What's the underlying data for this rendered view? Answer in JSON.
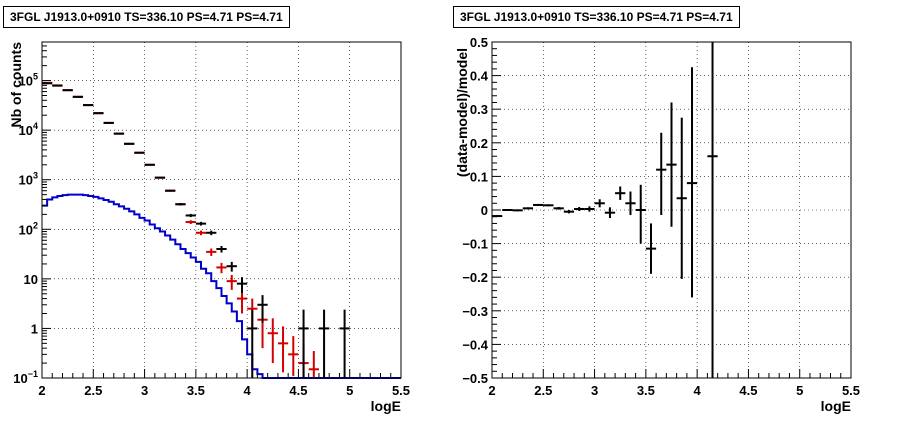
{
  "colors": {
    "data": "#000000",
    "model": "#d40000",
    "background": "#0000cc",
    "frame": "#000000",
    "grid": "#000000"
  },
  "chart_data": [
    {
      "type": "line",
      "title": "3FGL J1913.0+0910 TS=336.10 PS=4.71 PS=4.71",
      "xlabel": "logE",
      "ylabel": "Nb of counts",
      "log_y": true,
      "xlim": [
        2,
        5.5
      ],
      "ylim": [
        0.1,
        600000
      ],
      "grid": true,
      "x_tick_labels": [
        "2",
        "2.5",
        "3",
        "3.5",
        "4",
        "4.5",
        "5",
        "5.5"
      ],
      "y_tick_labels": [
        "10^-1",
        "1",
        "10",
        "10^2",
        "10^3",
        "10^4",
        "10^5"
      ],
      "bin_width": 0.1,
      "series": [
        {
          "role": "data",
          "color": "#000000",
          "points": [
            {
              "x": 2.05,
              "y": 88000,
              "ylo": 87700,
              "yhi": 88300
            },
            {
              "x": 2.15,
              "y": 79000,
              "ylo": 78700,
              "yhi": 79300
            },
            {
              "x": 2.25,
              "y": 64000,
              "ylo": 63700,
              "yhi": 64300
            },
            {
              "x": 2.35,
              "y": 47000,
              "ylo": 46800,
              "yhi": 47200
            },
            {
              "x": 2.45,
              "y": 32000,
              "ylo": 31800,
              "yhi": 32200
            },
            {
              "x": 2.55,
              "y": 22000,
              "ylo": 21850,
              "yhi": 22150
            },
            {
              "x": 2.65,
              "y": 14000,
              "ylo": 13880,
              "yhi": 14120
            },
            {
              "x": 2.75,
              "y": 8500,
              "ylo": 8410,
              "yhi": 8590
            },
            {
              "x": 2.85,
              "y": 5300,
              "ylo": 5230,
              "yhi": 5370
            },
            {
              "x": 2.95,
              "y": 3500,
              "ylo": 3440,
              "yhi": 3560
            },
            {
              "x": 3.05,
              "y": 2000,
              "ylo": 1955,
              "yhi": 2045
            },
            {
              "x": 3.15,
              "y": 1100,
              "ylo": 1067,
              "yhi": 1133
            },
            {
              "x": 3.25,
              "y": 600,
              "ylo": 575,
              "yhi": 625
            },
            {
              "x": 3.35,
              "y": 320,
              "ylo": 302,
              "yhi": 338
            },
            {
              "x": 3.45,
              "y": 190,
              "ylo": 176,
              "yhi": 204
            },
            {
              "x": 3.55,
              "y": 130,
              "ylo": 119,
              "yhi": 141
            },
            {
              "x": 3.65,
              "y": 85,
              "ylo": 76,
              "yhi": 94
            },
            {
              "x": 3.75,
              "y": 40,
              "ylo": 34,
              "yhi": 46
            },
            {
              "x": 3.85,
              "y": 18,
              "ylo": 14,
              "yhi": 22
            },
            {
              "x": 3.95,
              "y": 8,
              "ylo": 5.2,
              "yhi": 10.8
            },
            {
              "x": 4.05,
              "y": 1,
              "ylo": 0.1,
              "yhi": 2.4
            },
            {
              "x": 4.15,
              "y": 3,
              "ylo": 1.3,
              "yhi": 4.7
            },
            {
              "x": 4.55,
              "y": 1,
              "ylo": 0.1,
              "yhi": 2.4
            },
            {
              "x": 4.75,
              "y": 1,
              "ylo": 0.1,
              "yhi": 2.4
            },
            {
              "x": 4.95,
              "y": 1,
              "ylo": 0.1,
              "yhi": 2.4
            }
          ]
        },
        {
          "role": "model",
          "color": "#d40000",
          "points": [
            {
              "x": 2.05,
              "y": 90000,
              "ylo": 89500,
              "yhi": 90500
            },
            {
              "x": 2.15,
              "y": 80000,
              "ylo": 79500,
              "yhi": 80500
            },
            {
              "x": 2.25,
              "y": 64000,
              "ylo": 63600,
              "yhi": 64400
            },
            {
              "x": 2.35,
              "y": 47000,
              "ylo": 46700,
              "yhi": 47300
            },
            {
              "x": 2.45,
              "y": 32000,
              "ylo": 31800,
              "yhi": 32200
            },
            {
              "x": 2.55,
              "y": 22000,
              "ylo": 21850,
              "yhi": 22150
            },
            {
              "x": 2.65,
              "y": 14000,
              "ylo": 13880,
              "yhi": 14120
            },
            {
              "x": 2.75,
              "y": 8500,
              "ylo": 8410,
              "yhi": 8590
            },
            {
              "x": 2.85,
              "y": 5300,
              "ylo": 5230,
              "yhi": 5370
            },
            {
              "x": 2.95,
              "y": 3500,
              "ylo": 3440,
              "yhi": 3560
            },
            {
              "x": 3.05,
              "y": 2000,
              "ylo": 1955,
              "yhi": 2045
            },
            {
              "x": 3.15,
              "y": 1100,
              "ylo": 1067,
              "yhi": 1133
            },
            {
              "x": 3.25,
              "y": 600,
              "ylo": 575,
              "yhi": 625
            },
            {
              "x": 3.35,
              "y": 320,
              "ylo": 302,
              "yhi": 338
            },
            {
              "x": 3.45,
              "y": 140,
              "ylo": 128,
              "yhi": 152
            },
            {
              "x": 3.55,
              "y": 85,
              "ylo": 76,
              "yhi": 94
            },
            {
              "x": 3.65,
              "y": 35,
              "ylo": 29,
              "yhi": 41
            },
            {
              "x": 3.75,
              "y": 17,
              "ylo": 13,
              "yhi": 21
            },
            {
              "x": 3.85,
              "y": 9,
              "ylo": 6,
              "yhi": 12
            },
            {
              "x": 3.95,
              "y": 4,
              "ylo": 2,
              "yhi": 6
            },
            {
              "x": 4.05,
              "y": 2.5,
              "ylo": 1,
              "yhi": 4
            },
            {
              "x": 4.15,
              "y": 1.5,
              "ylo": 0.4,
              "yhi": 2.6
            },
            {
              "x": 4.25,
              "y": 0.8,
              "ylo": 0.2,
              "yhi": 1.6
            },
            {
              "x": 4.35,
              "y": 0.5,
              "ylo": 0.13,
              "yhi": 1.1
            },
            {
              "x": 4.45,
              "y": 0.3,
              "ylo": 0.11,
              "yhi": 0.7
            },
            {
              "x": 4.55,
              "y": 0.2,
              "ylo": 0.1,
              "yhi": 0.5
            },
            {
              "x": 4.65,
              "y": 0.15,
              "ylo": 0.1,
              "yhi": 0.35
            }
          ]
        },
        {
          "role": "background",
          "color": "#0000cc",
          "step_edges": [
            2.0,
            2.05,
            2.1,
            2.15,
            2.2,
            2.25,
            2.3,
            2.35,
            2.4,
            2.45,
            2.5,
            2.55,
            2.6,
            2.65,
            2.7,
            2.75,
            2.8,
            2.85,
            2.9,
            2.95,
            3.0,
            3.05,
            3.1,
            3.15,
            3.2,
            3.25,
            3.3,
            3.35,
            3.4,
            3.45,
            3.5,
            3.55,
            3.6,
            3.65,
            3.7,
            3.75,
            3.8,
            3.85,
            3.9,
            3.95,
            4.0,
            4.05,
            4.1,
            4.15,
            5.5
          ],
          "step_values": [
            300,
            400,
            440,
            470,
            490,
            500,
            500,
            500,
            490,
            470,
            450,
            420,
            390,
            360,
            320,
            290,
            260,
            230,
            200,
            170,
            150,
            125,
            105,
            90,
            75,
            62,
            50,
            40,
            33,
            27,
            22,
            16,
            13,
            9,
            6.5,
            4.5,
            3.2,
            2.2,
            1.4,
            0.6,
            0.3,
            0.15,
            0.12,
            0.1
          ]
        }
      ]
    },
    {
      "type": "scatter",
      "title": "3FGL J1913.0+0910 TS=336.10 PS=4.71 PS=4.71",
      "xlabel": "logE",
      "ylabel": "(data-model)/model",
      "xlim": [
        2,
        5.5
      ],
      "ylim": [
        -0.5,
        0.5
      ],
      "grid": true,
      "x_tick_labels": [
        "2",
        "2.5",
        "3",
        "3.5",
        "4",
        "4.5",
        "5",
        "5.5"
      ],
      "y_tick_labels": [
        "−0.5",
        "−0.4",
        "−0.3",
        "−0.2",
        "−0.1",
        "0",
        "0.1",
        "0.2",
        "0.3",
        "0.4",
        "0.5"
      ],
      "bin_width": 0.1,
      "series": [
        {
          "role": "residuals",
          "color": "#000000",
          "points": [
            {
              "x": 2.05,
              "y": -0.018,
              "ylo": -0.021,
              "yhi": -0.015
            },
            {
              "x": 2.15,
              "y": 0.0,
              "ylo": -0.003,
              "yhi": 0.003
            },
            {
              "x": 2.25,
              "y": -0.001,
              "ylo": -0.004,
              "yhi": 0.002
            },
            {
              "x": 2.35,
              "y": 0.005,
              "ylo": 0.002,
              "yhi": 0.008
            },
            {
              "x": 2.45,
              "y": 0.015,
              "ylo": 0.012,
              "yhi": 0.018
            },
            {
              "x": 2.55,
              "y": 0.014,
              "ylo": 0.011,
              "yhi": 0.017
            },
            {
              "x": 2.65,
              "y": 0.005,
              "ylo": 0.001,
              "yhi": 0.009
            },
            {
              "x": 2.75,
              "y": -0.005,
              "ylo": -0.01,
              "yhi": 0.0
            },
            {
              "x": 2.85,
              "y": 0.003,
              "ylo": -0.003,
              "yhi": 0.009
            },
            {
              "x": 2.95,
              "y": 0.003,
              "ylo": -0.005,
              "yhi": 0.011
            },
            {
              "x": 3.05,
              "y": 0.02,
              "ylo": 0.008,
              "yhi": 0.032
            },
            {
              "x": 3.15,
              "y": -0.008,
              "ylo": -0.024,
              "yhi": 0.008
            },
            {
              "x": 3.25,
              "y": 0.05,
              "ylo": 0.03,
              "yhi": 0.07
            },
            {
              "x": 3.35,
              "y": 0.02,
              "ylo": -0.015,
              "yhi": 0.055
            },
            {
              "x": 3.45,
              "y": 0.0,
              "ylo": -0.1,
              "yhi": 0.075
            },
            {
              "x": 3.55,
              "y": -0.115,
              "ylo": -0.19,
              "yhi": -0.04
            },
            {
              "x": 3.65,
              "y": 0.12,
              "ylo": -0.015,
              "yhi": 0.23
            },
            {
              "x": 3.75,
              "y": 0.135,
              "ylo": -0.05,
              "yhi": 0.32
            },
            {
              "x": 3.85,
              "y": 0.035,
              "ylo": -0.205,
              "yhi": 0.275
            },
            {
              "x": 3.95,
              "y": 0.08,
              "ylo": -0.26,
              "yhi": 0.425
            },
            {
              "x": 4.15,
              "y": 0.16,
              "ylo": -0.5,
              "yhi": 0.5
            }
          ]
        }
      ]
    }
  ]
}
